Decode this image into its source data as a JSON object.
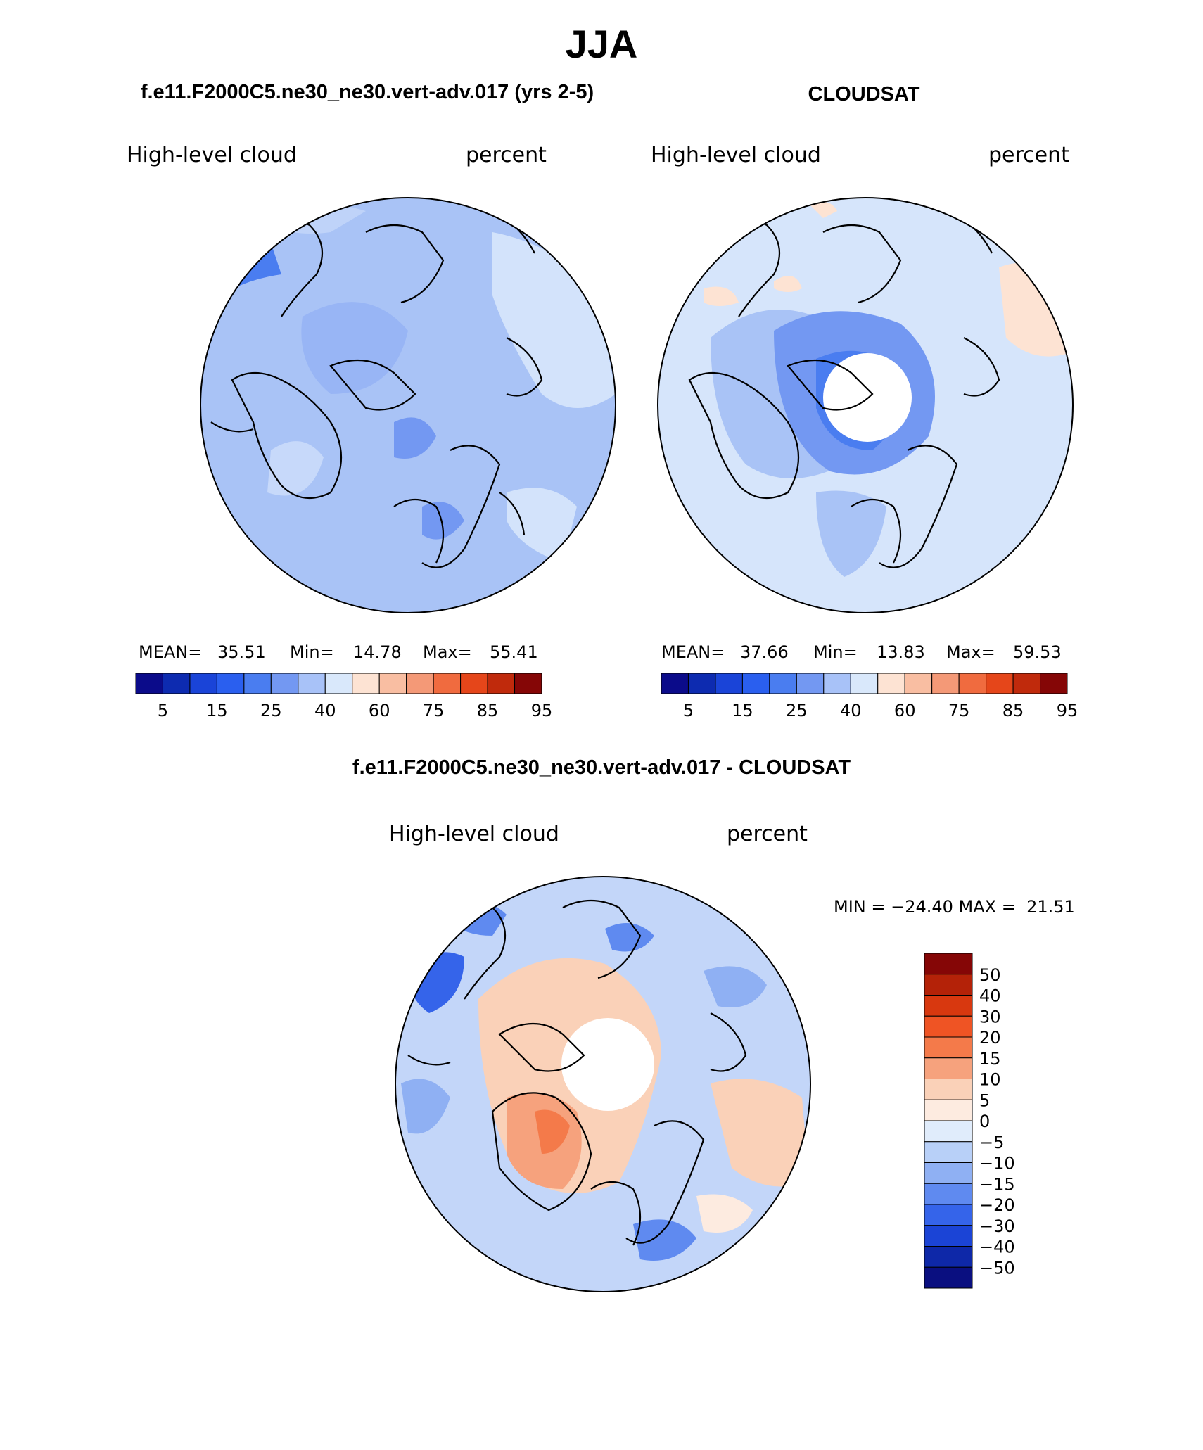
{
  "figure": {
    "title": "JJA",
    "panel_titles": {
      "model": "f.e11.F2000C5.ne30_ne30.vert-adv.017 (yrs 2-5)",
      "obs": "CLOUDSAT",
      "diff": "f.e11.F2000C5.ne30_ne30.vert-adv.017 - CLOUDSAT"
    }
  },
  "chart_data": [
    {
      "type": "heatmap",
      "projection": "polar stereographic (north pole)",
      "name": "model",
      "title": "f.e11.F2000C5.ne30_ne30.vert-adv.017 (yrs 2-5)",
      "left_label": "High-level cloud",
      "right_label": "percent",
      "stats": {
        "mean_label": "MEAN=",
        "mean": "35.51",
        "min_label": "Min=",
        "min": "14.78",
        "max_label": "Max=",
        "max": "55.41"
      },
      "colorbar_tick_labels": [
        "5",
        "15",
        "25",
        "40",
        "60",
        "75",
        "85",
        "95"
      ],
      "colorbar_levels": [
        5,
        10,
        15,
        20,
        25,
        30,
        40,
        50,
        60,
        70,
        75,
        80,
        85,
        90,
        95
      ]
    },
    {
      "type": "heatmap",
      "projection": "polar stereographic (north pole)",
      "name": "obs",
      "title": "CLOUDSAT",
      "left_label": "High-level cloud",
      "right_label": "percent",
      "stats": {
        "mean_label": "MEAN=",
        "mean": "37.66",
        "min_label": "Min=",
        "min": "13.83",
        "max_label": "Max=",
        "max": "59.53"
      },
      "colorbar_tick_labels": [
        "5",
        "15",
        "25",
        "40",
        "60",
        "75",
        "85",
        "95"
      ],
      "colorbar_levels": [
        5,
        10,
        15,
        20,
        25,
        30,
        40,
        50,
        60,
        70,
        75,
        80,
        85,
        90,
        95
      ],
      "missing_data_region": "polar cap (no data)"
    },
    {
      "type": "heatmap",
      "projection": "polar stereographic (north pole)",
      "name": "difference",
      "title": "f.e11.F2000C5.ne30_ne30.vert-adv.017 - CLOUDSAT",
      "left_label": "High-level cloud",
      "right_label": "percent",
      "stats_text": "MIN = −24.40 MAX =  21.51",
      "colorbar_tick_labels": [
        "50",
        "40",
        "30",
        "20",
        "15",
        "10",
        "5",
        "0",
        "−5",
        "−10",
        "−15",
        "−20",
        "−30",
        "−40",
        "−50"
      ],
      "colorbar_levels": [
        50,
        40,
        30,
        20,
        15,
        10,
        5,
        0,
        -5,
        -10,
        -15,
        -20,
        -30,
        -40,
        -50
      ]
    }
  ],
  "colors": {
    "model_obs_palette": [
      "#0b0b8a",
      "#0d2bb0",
      "#1a44d8",
      "#2a5fef",
      "#4a7df0",
      "#7398f2",
      "#a8c2f8",
      "#d9e8fb",
      "#fde3d3",
      "#f9bea2",
      "#f49977",
      "#f06b3f",
      "#e5461a",
      "#c02a0c",
      "#850606"
    ],
    "diff_palette": [
      "#850606",
      "#b42208",
      "#d8380f",
      "#ef5424",
      "#f47a4a",
      "#f6a27d",
      "#fad1b8",
      "#fdebe0",
      "#e0ecfb",
      "#b8d0f8",
      "#8fb0f3",
      "#5f8af0",
      "#3564ea",
      "#1b44d6",
      "#0e28a8",
      "#0a0f80"
    ]
  }
}
